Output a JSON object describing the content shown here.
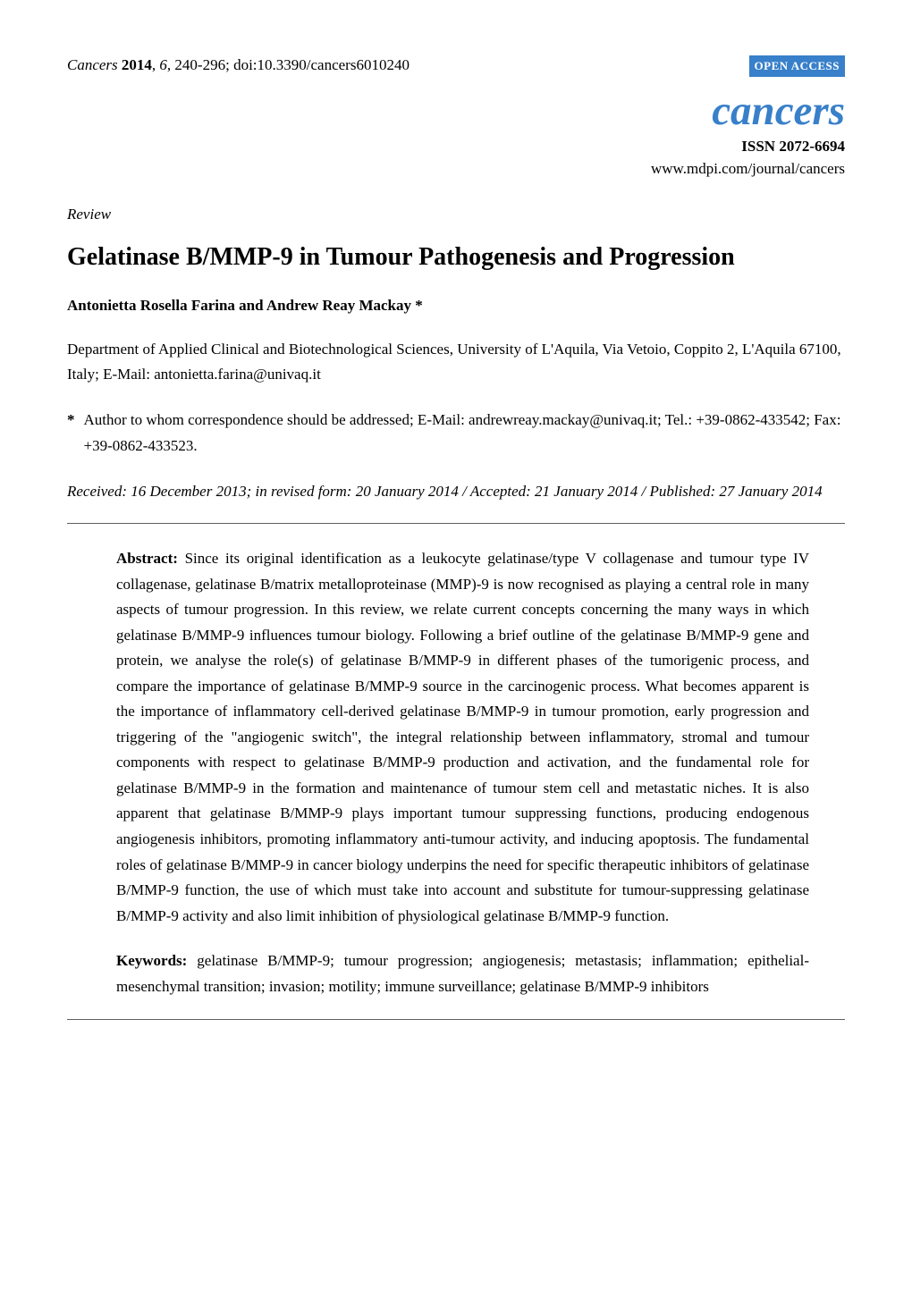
{
  "header": {
    "citation": {
      "journal": "Cancers",
      "year": "2014",
      "volume": "6",
      "pages": "240-296",
      "doi": "doi:10.3390/cancers6010240"
    },
    "open_access_label": "OPEN ACCESS",
    "journal_logo": "cancers",
    "issn": "ISSN 2072-6694",
    "journal_url": "www.mdpi.com/journal/cancers"
  },
  "article_type": "Review",
  "title": "Gelatinase B/MMP-9 in Tumour Pathogenesis and Progression",
  "authors": "Antonietta Rosella Farina and Andrew Reay Mackay *",
  "affiliation": "Department of Applied Clinical and Biotechnological Sciences, University of L'Aquila, Via Vetoio, Coppito 2, L'Aquila 67100, Italy; E-Mail: antonietta.farina@univaq.it",
  "correspondence": {
    "asterisk": "*",
    "text": "Author to whom correspondence should be addressed; E-Mail: andrewreay.mackay@univaq.it; Tel.: +39-0862-433542; Fax: +39-0862-433523."
  },
  "dates": "Received: 16 December 2013; in revised form: 20 January 2014 / Accepted: 21 January 2014 / Published: 27 January 2014",
  "abstract": {
    "label": "Abstract:",
    "text": " Since its original identification as a leukocyte gelatinase/type V collagenase and tumour type IV collagenase, gelatinase B/matrix metalloproteinase (MMP)-9 is now recognised as playing a central role in many aspects of tumour progression. In this review, we relate current concepts concerning the many ways in which gelatinase B/MMP-9 influences tumour biology. Following a brief outline of the gelatinase B/MMP-9 gene and protein, we analyse the role(s) of gelatinase B/MMP-9 in different phases of the tumorigenic process, and compare the importance of gelatinase B/MMP-9 source in the carcinogenic process. What becomes apparent is the importance of inflammatory cell-derived gelatinase B/MMP-9 in tumour promotion, early progression and triggering of the \"angiogenic switch\", the integral relationship between inflammatory, stromal and tumour components with respect to gelatinase B/MMP-9 production and activation, and the fundamental role for gelatinase B/MMP-9 in the formation and maintenance of tumour stem cell and metastatic niches. It is also apparent that gelatinase B/MMP-9 plays important tumour suppressing functions, producing endogenous angiogenesis inhibitors, promoting inflammatory anti-tumour activity, and inducing apoptosis. The fundamental roles of gelatinase B/MMP-9 in cancer biology underpins the need for specific therapeutic inhibitors of gelatinase B/MMP-9 function, the use of which must take into account and substitute for tumour-suppressing gelatinase B/MMP-9 activity and also limit inhibition of physiological gelatinase B/MMP-9 function."
  },
  "keywords": {
    "label": "Keywords:",
    "text": " gelatinase B/MMP-9; tumour progression; angiogenesis; metastasis; inflammation; epithelial-mesenchymal transition; invasion; motility; immune surveillance; gelatinase B/MMP-9 inhibitors"
  },
  "colors": {
    "open_access_bg": "#3880c9",
    "journal_logo_color": "#3880c9",
    "text_color": "#000000",
    "background": "#ffffff",
    "hr_color": "#606060"
  },
  "typography": {
    "body_font": "Times New Roman",
    "body_size_pt": 12,
    "title_size_pt": 20,
    "logo_size_pt": 34
  }
}
